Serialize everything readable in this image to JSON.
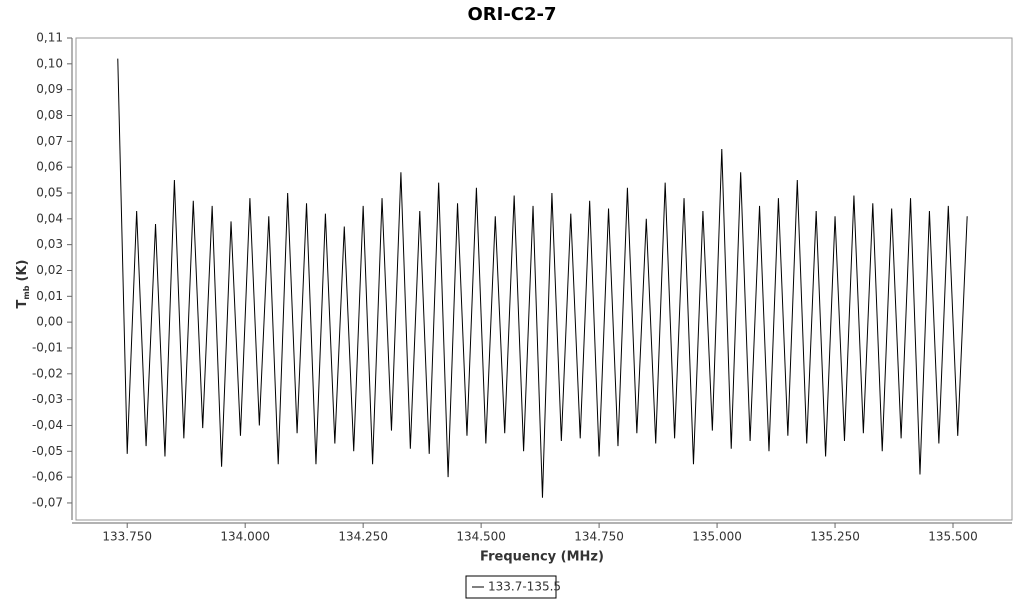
{
  "chart_data": {
    "type": "line",
    "title": "ORI-C2-7",
    "x_label": "Frequency (MHz)",
    "y_label": "T",
    "y_label_sub": "mb",
    "y_label_unit": "(K)",
    "xlim": [
      133.633,
      135.625
    ],
    "ylim": [
      -0.0766,
      0.11
    ],
    "xticks": [
      {
        "value": 133.75,
        "label": "133.750"
      },
      {
        "value": 134.0,
        "label": "134.000"
      },
      {
        "value": 134.25,
        "label": "134.250"
      },
      {
        "value": 134.5,
        "label": "134.500"
      },
      {
        "value": 134.75,
        "label": "134.750"
      },
      {
        "value": 135.0,
        "label": "135.000"
      },
      {
        "value": 135.25,
        "label": "135.250"
      },
      {
        "value": 135.5,
        "label": "135.500"
      }
    ],
    "yticks": [
      {
        "value": 0.11,
        "label": "0,11"
      },
      {
        "value": 0.1,
        "label": "0,10"
      },
      {
        "value": 0.09,
        "label": "0,09"
      },
      {
        "value": 0.08,
        "label": "0,08"
      },
      {
        "value": 0.07,
        "label": "0,07"
      },
      {
        "value": 0.06,
        "label": "0,06"
      },
      {
        "value": 0.05,
        "label": "0,05"
      },
      {
        "value": 0.04,
        "label": "0,04"
      },
      {
        "value": 0.03,
        "label": "0,03"
      },
      {
        "value": 0.02,
        "label": "0,02"
      },
      {
        "value": 0.01,
        "label": "0,01"
      },
      {
        "value": 0,
        "label": "0,00"
      },
      {
        "value": -0.01,
        "label": "-0,01"
      },
      {
        "value": -0.02,
        "label": "-0,02"
      },
      {
        "value": -0.03,
        "label": "-0,03"
      },
      {
        "value": -0.04,
        "label": "-0,04"
      },
      {
        "value": -0.05,
        "label": "-0,05"
      },
      {
        "value": -0.06,
        "label": "-0,06"
      },
      {
        "value": -0.07,
        "label": "-0,07"
      }
    ],
    "x": [
      133.73,
      133.75,
      133.77,
      133.79,
      133.81,
      133.83,
      133.85,
      133.87,
      133.89,
      133.91,
      133.93,
      133.95,
      133.97,
      133.99,
      134.01,
      134.03,
      134.05,
      134.07,
      134.09,
      134.11,
      134.13,
      134.15,
      134.17,
      134.19,
      134.21,
      134.23,
      134.25,
      134.27,
      134.29,
      134.31,
      134.33,
      134.35,
      134.37,
      134.39,
      134.41,
      134.43,
      134.45,
      134.47,
      134.49,
      134.51,
      134.53,
      134.55,
      134.57,
      134.59,
      134.61,
      134.63,
      134.65,
      134.67,
      134.69,
      134.71,
      134.73,
      134.75,
      134.77,
      134.79,
      134.81,
      134.83,
      134.85,
      134.87,
      134.89,
      134.91,
      134.93,
      134.95,
      134.97,
      134.99,
      135.01,
      135.03,
      135.05,
      135.07,
      135.09,
      135.11,
      135.13,
      135.15,
      135.17,
      135.19,
      135.21,
      135.23,
      135.25,
      135.27,
      135.29,
      135.31,
      135.33,
      135.35,
      135.37,
      135.39,
      135.41,
      135.43,
      135.45,
      135.47,
      135.49,
      135.51,
      135.53
    ],
    "series": [
      {
        "name": "133.7-135.5",
        "color": "#000000",
        "values": [
          0.102,
          -0.051,
          0.043,
          -0.048,
          0.038,
          -0.052,
          0.055,
          -0.045,
          0.047,
          -0.041,
          0.045,
          -0.056,
          0.039,
          -0.044,
          0.048,
          -0.04,
          0.041,
          -0.055,
          0.05,
          -0.043,
          0.046,
          -0.055,
          0.042,
          -0.047,
          0.037,
          -0.05,
          0.045,
          -0.055,
          0.048,
          -0.042,
          0.058,
          -0.049,
          0.043,
          -0.051,
          0.054,
          -0.06,
          0.046,
          -0.044,
          0.052,
          -0.047,
          0.041,
          -0.043,
          0.049,
          -0.05,
          0.045,
          -0.068,
          0.05,
          -0.046,
          0.042,
          -0.045,
          0.047,
          -0.052,
          0.044,
          -0.048,
          0.052,
          -0.043,
          0.04,
          -0.047,
          0.054,
          -0.045,
          0.048,
          -0.055,
          0.043,
          -0.042,
          0.067,
          -0.049,
          0.058,
          -0.046,
          0.045,
          -0.05,
          0.048,
          -0.044,
          0.055,
          -0.047,
          0.043,
          -0.052,
          0.041,
          -0.046,
          0.049,
          -0.043,
          0.046,
          -0.05,
          0.044,
          -0.045,
          0.048,
          -0.059,
          0.043,
          -0.047,
          0.045,
          -0.044,
          0.041
        ]
      }
    ]
  }
}
